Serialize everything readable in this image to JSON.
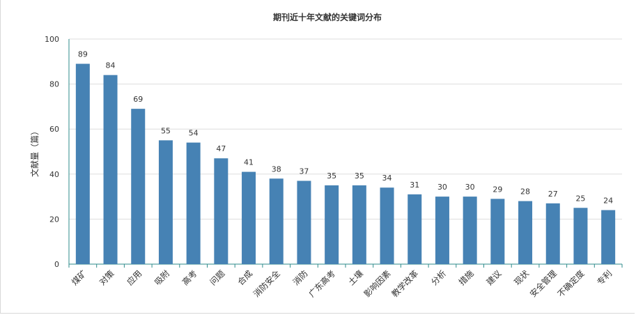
{
  "chart_data": {
    "type": "bar",
    "title": "期刊近十年文献的关键词分布",
    "xlabel": "",
    "ylabel": "文献量（篇）",
    "ylim": [
      0,
      100
    ],
    "yticks": [
      0,
      20,
      40,
      60,
      80,
      100
    ],
    "grid": true,
    "legend": "none",
    "categories": [
      "煤矿",
      "对策",
      "应用",
      "吸附",
      "高考",
      "问题",
      "合成",
      "消防安全",
      "消防",
      "广东高考",
      "土壤",
      "影响因素",
      "教学改革",
      "分析",
      "措施",
      "建议",
      "现状",
      "安全管理",
      "不确定度",
      "专利"
    ],
    "values": [
      89,
      84,
      69,
      55,
      54,
      47,
      41,
      38,
      37,
      35,
      35,
      34,
      31,
      30,
      30,
      29,
      28,
      27,
      25,
      24
    ],
    "bar_color": "#4682b4",
    "axis_color": "#2e8b8b",
    "grid_color": "#dddddd"
  }
}
